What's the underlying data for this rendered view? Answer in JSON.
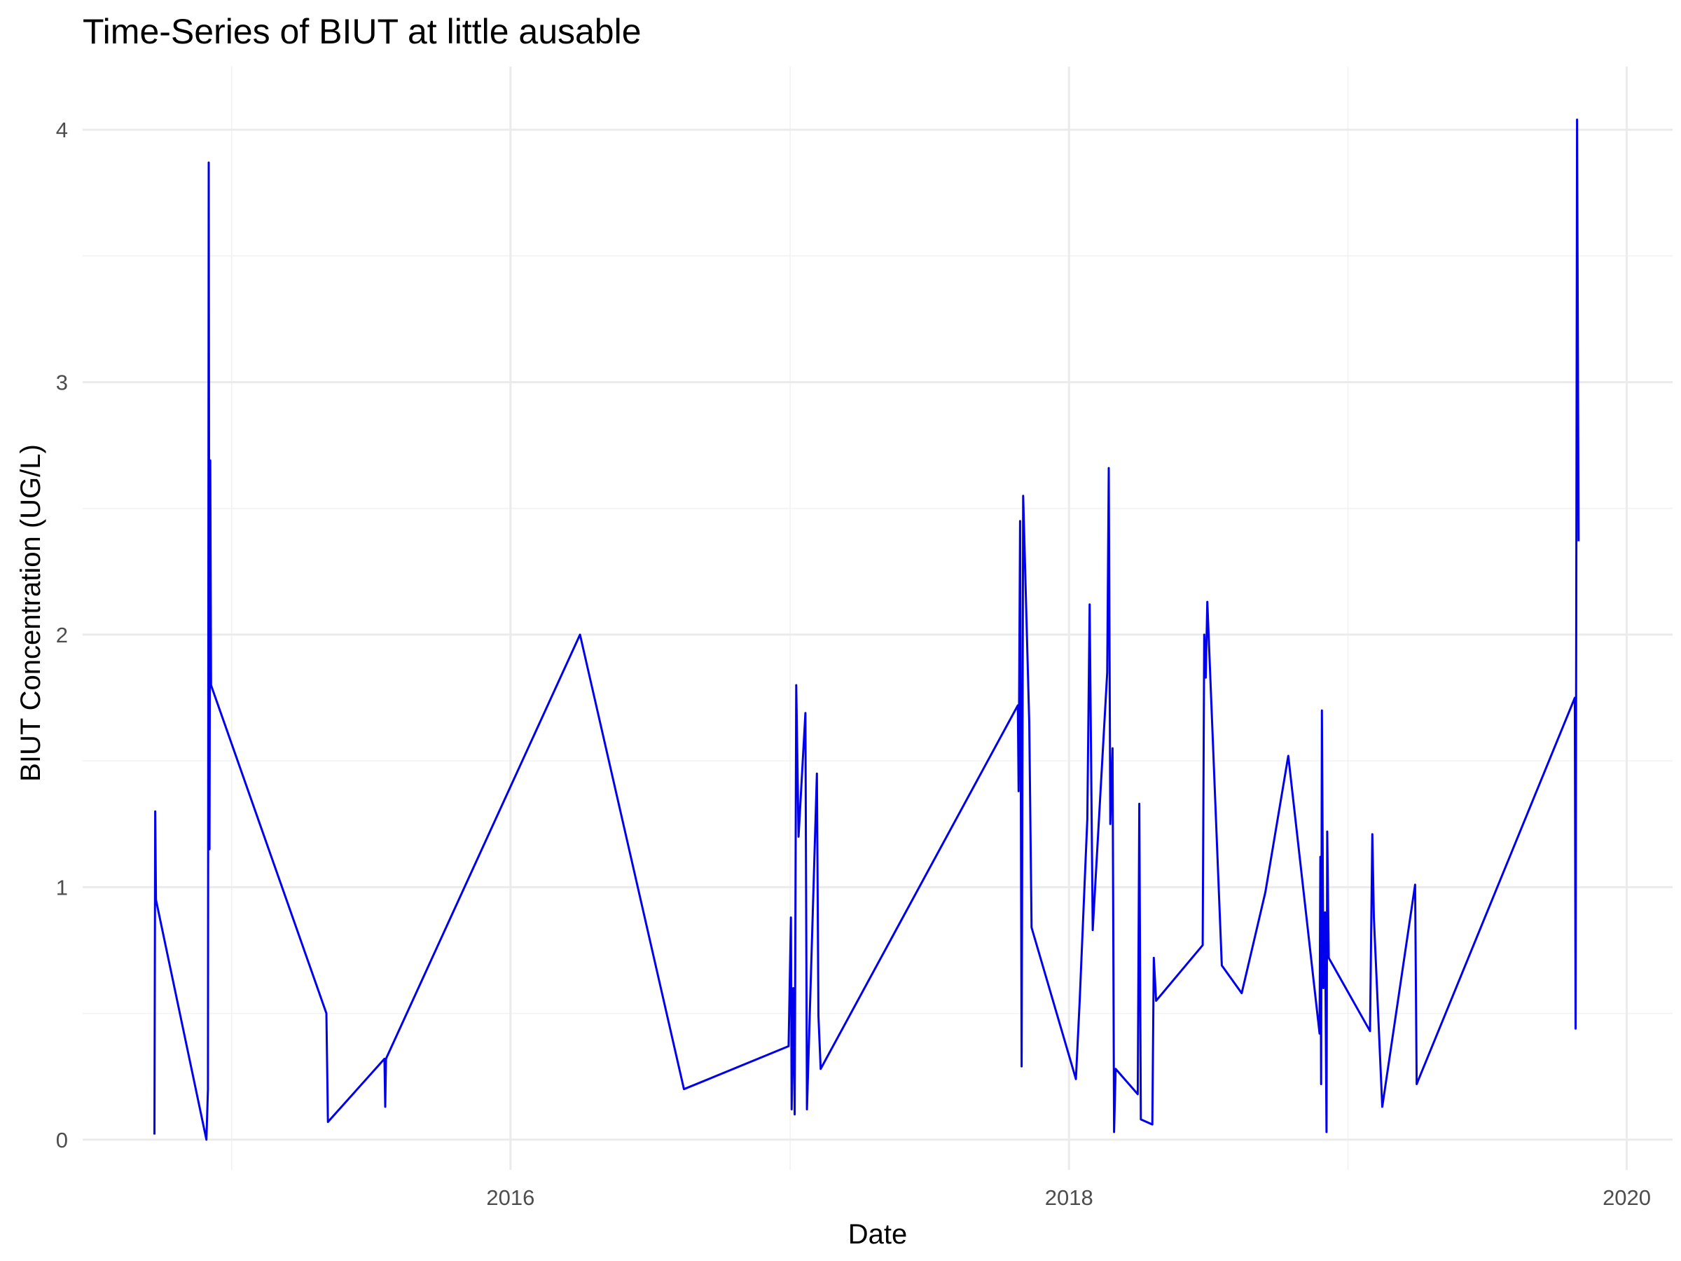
{
  "chart_data": {
    "type": "line",
    "title": "Time-Series of BIUT at little ausable",
    "xlabel": "Date",
    "ylabel": "BIUT Concentration (UG/L)",
    "xlim": [
      "2014-06-20",
      "2020-03-01"
    ],
    "ylim": [
      -0.12,
      4.25
    ],
    "x_ticks": [
      {
        "date": "2016-01-01",
        "label": "2016"
      },
      {
        "date": "2018-01-01",
        "label": "2018"
      },
      {
        "date": "2020-01-01",
        "label": "2020"
      }
    ],
    "x_minor_ticks": [
      "2015-01-01",
      "2017-01-01",
      "2019-01-01"
    ],
    "y_ticks": [
      0,
      1,
      2,
      3,
      4
    ],
    "y_minor_ticks": [
      0.5,
      1.5,
      2.5,
      3.5
    ],
    "grid": true,
    "legend": "none",
    "series": [
      {
        "color": "#0000ee",
        "points": [
          [
            "2014-09-22",
            0.02
          ],
          [
            "2014-09-23",
            1.3
          ],
          [
            "2014-09-24",
            0.95
          ],
          [
            "2014-11-29",
            0.0
          ],
          [
            "2014-12-01",
            0.2
          ],
          [
            "2014-12-02",
            3.87
          ],
          [
            "2014-12-03",
            1.15
          ],
          [
            "2014-12-04",
            2.69
          ],
          [
            "2014-12-05",
            1.8
          ],
          [
            "2015-05-05",
            0.5
          ],
          [
            "2015-05-07",
            0.07
          ],
          [
            "2015-07-20",
            0.32
          ],
          [
            "2015-07-21",
            0.13
          ],
          [
            "2015-07-22",
            0.32
          ],
          [
            "2016-04-01",
            2.0
          ],
          [
            "2016-08-15",
            0.2
          ],
          [
            "2016-12-30",
            0.37
          ],
          [
            "2017-01-02",
            0.88
          ],
          [
            "2017-01-03",
            0.12
          ],
          [
            "2017-01-05",
            0.6
          ],
          [
            "2017-01-07",
            0.1
          ],
          [
            "2017-01-09",
            1.8
          ],
          [
            "2017-01-12",
            1.2
          ],
          [
            "2017-01-21",
            1.69
          ],
          [
            "2017-01-23",
            0.12
          ],
          [
            "2017-02-05",
            1.45
          ],
          [
            "2017-02-07",
            0.49
          ],
          [
            "2017-02-10",
            0.28
          ],
          [
            "2017-10-26",
            1.72
          ],
          [
            "2017-10-27",
            1.38
          ],
          [
            "2017-10-29",
            2.45
          ],
          [
            "2017-10-31",
            0.29
          ],
          [
            "2017-11-02",
            2.55
          ],
          [
            "2017-11-10",
            1.65
          ],
          [
            "2017-11-13",
            0.84
          ],
          [
            "2018-01-10",
            0.24
          ],
          [
            "2018-01-15",
            0.55
          ],
          [
            "2018-01-25",
            1.27
          ],
          [
            "2018-01-28",
            2.12
          ],
          [
            "2018-02-01",
            0.83
          ],
          [
            "2018-02-20",
            1.85
          ],
          [
            "2018-02-22",
            2.66
          ],
          [
            "2018-02-24",
            1.25
          ],
          [
            "2018-02-27",
            1.55
          ],
          [
            "2018-03-01",
            0.03
          ],
          [
            "2018-03-03",
            0.28
          ],
          [
            "2018-04-01",
            0.18
          ],
          [
            "2018-04-03",
            1.33
          ],
          [
            "2018-04-05",
            0.08
          ],
          [
            "2018-04-20",
            0.06
          ],
          [
            "2018-04-22",
            0.72
          ],
          [
            "2018-04-25",
            0.55
          ],
          [
            "2018-06-25",
            0.77
          ],
          [
            "2018-06-27",
            2.0
          ],
          [
            "2018-06-29",
            1.83
          ],
          [
            "2018-07-01",
            2.13
          ],
          [
            "2018-07-20",
            0.69
          ],
          [
            "2018-08-15",
            0.58
          ],
          [
            "2018-09-15",
            0.98
          ],
          [
            "2018-10-15",
            1.52
          ],
          [
            "2018-11-25",
            0.42
          ],
          [
            "2018-11-26",
            1.12
          ],
          [
            "2018-11-27",
            0.22
          ],
          [
            "2018-11-28",
            1.7
          ],
          [
            "2018-11-30",
            0.6
          ],
          [
            "2018-12-02",
            0.9
          ],
          [
            "2018-12-04",
            0.03
          ],
          [
            "2018-12-05",
            1.22
          ],
          [
            "2018-12-07",
            0.72
          ],
          [
            "2019-01-30",
            0.43
          ],
          [
            "2019-02-02",
            1.21
          ],
          [
            "2019-02-04",
            0.88
          ],
          [
            "2019-02-15",
            0.13
          ],
          [
            "2019-03-30",
            1.01
          ],
          [
            "2019-04-01",
            0.22
          ],
          [
            "2019-10-25",
            1.75
          ],
          [
            "2019-10-26",
            0.44
          ],
          [
            "2019-10-27",
            2.37
          ],
          [
            "2019-10-28",
            4.04
          ],
          [
            "2019-10-29",
            3.2
          ],
          [
            "2019-10-30",
            2.37
          ]
        ]
      }
    ]
  }
}
